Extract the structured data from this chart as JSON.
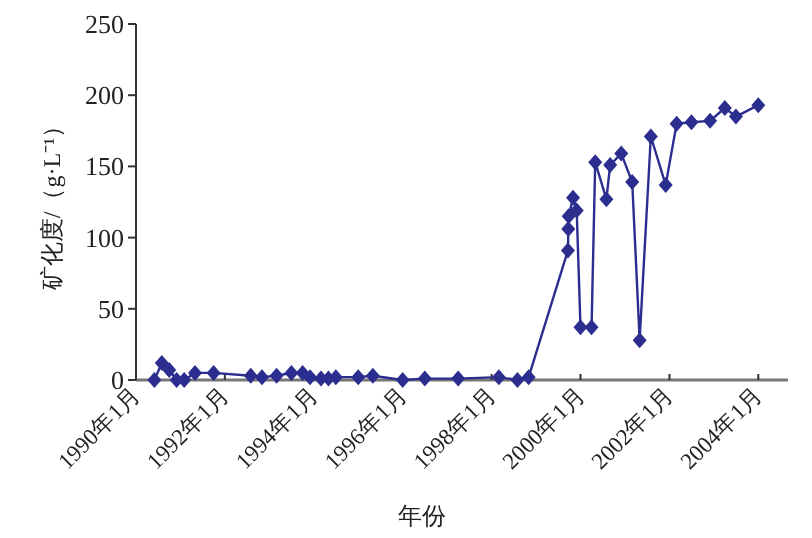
{
  "chart_data": {
    "type": "line",
    "xlabel": "年份",
    "ylabel": "矿化度/（g·L⁻¹）",
    "xlim": [
      "1990-01",
      "2004-09"
    ],
    "xticks": [
      {
        "value": "1990-01",
        "label": "1990年1月"
      },
      {
        "value": "1992-01",
        "label": "1992年1月"
      },
      {
        "value": "1994-01",
        "label": "1994年1月"
      },
      {
        "value": "1996-01",
        "label": "1996年1月"
      },
      {
        "value": "1998-01",
        "label": "1998年1月"
      },
      {
        "value": "2000-01",
        "label": "2000年1月"
      },
      {
        "value": "2002-01",
        "label": "2002年1月"
      },
      {
        "value": "2004-01",
        "label": "2004年1月"
      }
    ],
    "ylim": [
      0,
      250
    ],
    "yticks": [
      0,
      50,
      100,
      150,
      200,
      250
    ],
    "marker": "diamond",
    "grid": false,
    "series": [
      {
        "color": "#2b2e8f",
        "x": [
          "1990-06",
          "1990-08",
          "1990-10",
          "1990-12",
          "1991-02",
          "1991-05",
          "1991-10",
          "1992-08",
          "1992-11",
          "1993-03",
          "1993-07",
          "1993-10",
          "1993-12",
          "1994-03",
          "1994-05",
          "1994-07",
          "1995-01",
          "1995-05",
          "1996-01",
          "1996-07",
          "1997-04",
          "1998-03",
          "1998-08",
          "1998-11",
          "1999-09-20",
          "1999-09-23",
          "1999-09-26",
          "1999-11",
          "1999-12",
          "2000-01",
          "2000-04",
          "2000-05",
          "2000-08",
          "2000-09",
          "2000-12",
          "2001-03",
          "2001-05",
          "2001-08",
          "2001-12",
          "2002-03",
          "2002-07",
          "2002-12",
          "2003-04",
          "2003-07",
          "2004-01"
        ],
        "values": [
          0,
          12,
          7,
          0,
          0,
          5,
          5,
          3,
          2,
          3,
          5,
          5,
          2,
          1,
          1,
          2,
          2,
          3,
          0,
          1,
          1,
          2,
          0,
          2,
          91,
          106,
          115,
          128,
          119,
          37,
          37,
          153,
          127,
          151,
          159,
          139,
          28,
          171,
          137,
          180,
          181,
          182,
          191,
          185,
          193
        ]
      }
    ]
  }
}
